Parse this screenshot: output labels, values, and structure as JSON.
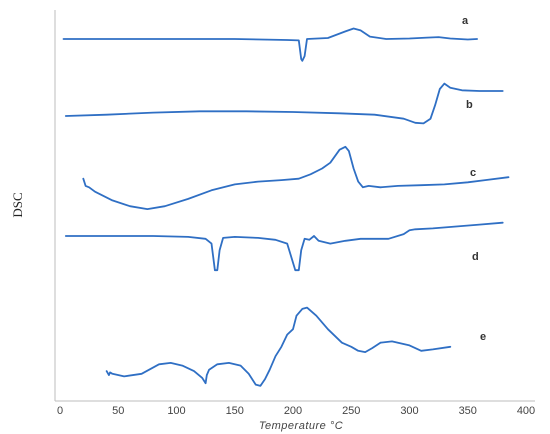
{
  "chart_data": {
    "type": "line",
    "xlabel": "Temperature °C",
    "ylabel": "DSC",
    "xlim": [
      0,
      400
    ],
    "xticks": [
      0,
      50,
      100,
      150,
      200,
      250,
      300,
      350,
      400
    ],
    "y_ticks_shown": false,
    "grid": false,
    "legend": "none",
    "stacked_offset_curves": true,
    "line_color": "#2f6fc4",
    "series": [
      {
        "name": "a",
        "points": [
          [
            3,
            0
          ],
          [
            30,
            0
          ],
          [
            60,
            0
          ],
          [
            100,
            0
          ],
          [
            150,
            0
          ],
          [
            195,
            -0.1
          ],
          [
            205,
            -0.15
          ],
          [
            207,
            -2.1
          ],
          [
            208,
            -2.3
          ],
          [
            210,
            -1.8
          ],
          [
            212,
            0
          ],
          [
            230,
            0.1
          ],
          [
            245,
            0.8
          ],
          [
            252,
            1.1
          ],
          [
            258,
            0.9
          ],
          [
            266,
            0.25
          ],
          [
            280,
            0
          ],
          [
            300,
            0.05
          ],
          [
            315,
            0.15
          ],
          [
            325,
            0.2
          ],
          [
            335,
            0.05
          ],
          [
            350,
            -0.05
          ],
          [
            358,
            0
          ]
        ]
      },
      {
        "name": "b",
        "points": [
          [
            5,
            0
          ],
          [
            40,
            0.1
          ],
          [
            80,
            0.25
          ],
          [
            120,
            0.35
          ],
          [
            160,
            0.35
          ],
          [
            200,
            0.3
          ],
          [
            240,
            0.2
          ],
          [
            270,
            0.1
          ],
          [
            295,
            -0.2
          ],
          [
            305,
            -0.5
          ],
          [
            312,
            -0.55
          ],
          [
            318,
            -0.2
          ],
          [
            322,
            0.8
          ],
          [
            326,
            2.0
          ],
          [
            330,
            2.4
          ],
          [
            335,
            2.1
          ],
          [
            345,
            1.9
          ],
          [
            360,
            1.85
          ],
          [
            380,
            1.85
          ]
        ]
      },
      {
        "name": "c",
        "points": [
          [
            20,
            0.3
          ],
          [
            22,
            -0.2
          ],
          [
            25,
            -0.3
          ],
          [
            30,
            -0.6
          ],
          [
            45,
            -1.2
          ],
          [
            60,
            -1.6
          ],
          [
            75,
            -1.8
          ],
          [
            90,
            -1.6
          ],
          [
            110,
            -1.1
          ],
          [
            130,
            -0.5
          ],
          [
            150,
            -0.1
          ],
          [
            170,
            0.1
          ],
          [
            190,
            0.2
          ],
          [
            205,
            0.3
          ],
          [
            215,
            0.6
          ],
          [
            225,
            1.0
          ],
          [
            232,
            1.4
          ],
          [
            240,
            2.3
          ],
          [
            245,
            2.5
          ],
          [
            248,
            2.2
          ],
          [
            252,
            1.0
          ],
          [
            256,
            0.1
          ],
          [
            260,
            -0.3
          ],
          [
            265,
            -0.2
          ],
          [
            275,
            -0.3
          ],
          [
            290,
            -0.2
          ],
          [
            310,
            -0.15
          ],
          [
            330,
            -0.1
          ],
          [
            350,
            0.05
          ],
          [
            365,
            0.2
          ],
          [
            385,
            0.4
          ]
        ]
      },
      {
        "name": "d",
        "points": [
          [
            5,
            0
          ],
          [
            40,
            0
          ],
          [
            80,
            0
          ],
          [
            110,
            -0.1
          ],
          [
            125,
            -0.3
          ],
          [
            130,
            -0.8
          ],
          [
            133,
            -3.6
          ],
          [
            135,
            -3.6
          ],
          [
            137,
            -1.5
          ],
          [
            140,
            -0.2
          ],
          [
            150,
            -0.1
          ],
          [
            170,
            -0.2
          ],
          [
            185,
            -0.4
          ],
          [
            195,
            -0.8
          ],
          [
            202,
            -3.6
          ],
          [
            205,
            -3.6
          ],
          [
            207,
            -1.5
          ],
          [
            210,
            -0.3
          ],
          [
            214,
            -0.4
          ],
          [
            218,
            0
          ],
          [
            222,
            -0.5
          ],
          [
            232,
            -0.8
          ],
          [
            245,
            -0.5
          ],
          [
            258,
            -0.3
          ],
          [
            270,
            -0.3
          ],
          [
            282,
            -0.3
          ],
          [
            295,
            0.2
          ],
          [
            300,
            0.6
          ],
          [
            305,
            0.7
          ],
          [
            320,
            0.8
          ],
          [
            340,
            1.0
          ],
          [
            360,
            1.2
          ],
          [
            380,
            1.4
          ]
        ]
      },
      {
        "name": "e",
        "points": [
          [
            40,
            -0.3
          ],
          [
            42,
            -0.6
          ],
          [
            43,
            -0.4
          ],
          [
            45,
            -0.5
          ],
          [
            55,
            -0.7
          ],
          [
            70,
            -0.5
          ],
          [
            85,
            0.2
          ],
          [
            95,
            0.3
          ],
          [
            105,
            0.1
          ],
          [
            115,
            -0.3
          ],
          [
            122,
            -0.8
          ],
          [
            125,
            -1.2
          ],
          [
            126,
            -0.6
          ],
          [
            128,
            -0.2
          ],
          [
            135,
            0.2
          ],
          [
            145,
            0.3
          ],
          [
            155,
            0.1
          ],
          [
            162,
            -0.5
          ],
          [
            168,
            -1.3
          ],
          [
            172,
            -1.4
          ],
          [
            176,
            -0.9
          ],
          [
            180,
            -0.2
          ],
          [
            185,
            0.8
          ],
          [
            190,
            1.5
          ],
          [
            195,
            2.4
          ],
          [
            200,
            2.8
          ],
          [
            203,
            3.8
          ],
          [
            208,
            4.3
          ],
          [
            212,
            4.4
          ],
          [
            220,
            3.8
          ],
          [
            230,
            2.8
          ],
          [
            242,
            1.8
          ],
          [
            250,
            1.5
          ],
          [
            256,
            1.2
          ],
          [
            262,
            1.1
          ],
          [
            268,
            1.4
          ],
          [
            275,
            1.8
          ],
          [
            285,
            1.9
          ],
          [
            300,
            1.6
          ],
          [
            310,
            1.2
          ],
          [
            320,
            1.3
          ],
          [
            335,
            1.5
          ]
        ]
      }
    ]
  }
}
